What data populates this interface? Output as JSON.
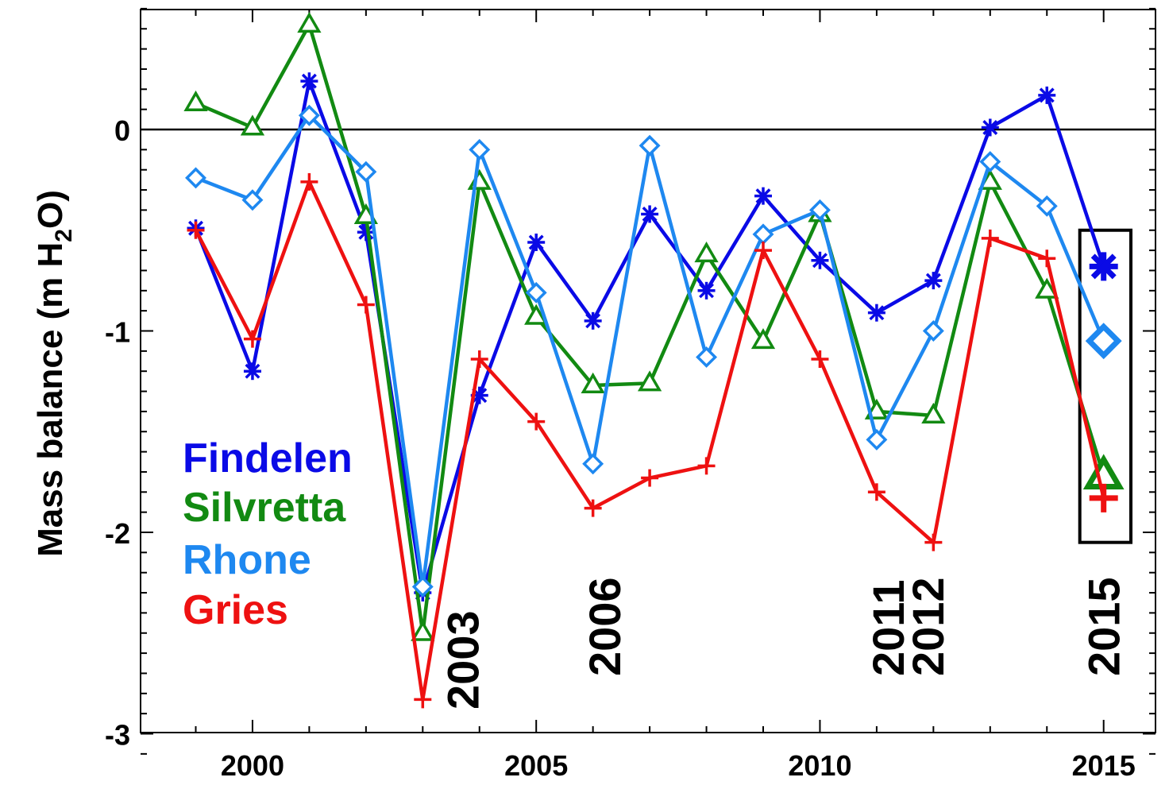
{
  "chart_data": {
    "type": "line",
    "title": "",
    "xlabel": "",
    "ylabel": "Mass balance (m H2O)",
    "ylabel_parts": {
      "pre": "Mass balance (m H",
      "sub": "2",
      "post": "O)"
    },
    "xlim": [
      1998,
      2016.3
    ],
    "ylim": [
      -3.1,
      0.6
    ],
    "x_ticks": [
      2000,
      2005,
      2010,
      2015
    ],
    "x_tick_labels": [
      "2000",
      "2005",
      "2010",
      "2015"
    ],
    "y_ticks": [
      0,
      -1,
      -2,
      -3
    ],
    "y_tick_labels": [
      "0",
      "-1",
      "-2",
      "-3"
    ],
    "zero_line": true,
    "grid": false,
    "legend_position": "lower-left",
    "x": [
      1999,
      2000,
      2001,
      2002,
      2003,
      2004,
      2005,
      2006,
      2007,
      2008,
      2009,
      2010,
      2011,
      2012,
      2013,
      2014
    ],
    "series": [
      {
        "name": "Findelen",
        "color": "#0a0ae6",
        "marker": "asterisk",
        "values": [
          -0.49,
          -1.2,
          0.24,
          -0.51,
          -2.3,
          -1.32,
          -0.56,
          -0.95,
          -0.42,
          -0.8,
          -0.33,
          -0.65,
          -0.91,
          -0.75,
          0.01,
          0.17
        ],
        "highlight": {
          "x": 2015,
          "y": -0.68
        }
      },
      {
        "name": "Silvretta",
        "color": "#128a12",
        "marker": "triangle",
        "values": [
          0.13,
          0.01,
          0.52,
          -0.43,
          -2.5,
          -0.26,
          -0.93,
          -1.27,
          -1.26,
          -0.62,
          -1.05,
          -0.42,
          -1.4,
          -1.42,
          -0.26,
          -0.8
        ],
        "highlight": {
          "x": 2015,
          "y": -1.72
        }
      },
      {
        "name": "Rhone",
        "color": "#1e88f0",
        "marker": "diamond",
        "values": [
          -0.24,
          -0.35,
          0.07,
          -0.21,
          -2.27,
          -0.1,
          -0.81,
          -1.66,
          -0.08,
          -1.13,
          -0.52,
          -0.4,
          -1.54,
          -1.0,
          -0.16,
          -0.38
        ],
        "highlight": {
          "x": 2015,
          "y": -1.05
        }
      },
      {
        "name": "Gries",
        "color": "#ee1111",
        "marker": "plus",
        "values": [
          -0.5,
          -1.04,
          -0.26,
          -0.87,
          -2.83,
          -1.14,
          -1.45,
          -1.88,
          -1.73,
          -1.67,
          -0.6,
          -1.14,
          -1.8,
          -2.05,
          -0.54,
          -0.64
        ],
        "highlight": {
          "x": 2015,
          "y": -1.83
        }
      }
    ],
    "annotations": [
      {
        "text": "2003",
        "x": 2003.7
      },
      {
        "text": "2006",
        "x": 2006.2
      },
      {
        "text": "2011",
        "x": 2011.2
      },
      {
        "text": "2012",
        "x": 2011.9
      },
      {
        "text": "2015",
        "x": 2015.0
      }
    ],
    "highlight_box": {
      "x_range": [
        2014.58,
        2015.48
      ],
      "y_range": [
        -2.05,
        -0.5
      ]
    }
  }
}
